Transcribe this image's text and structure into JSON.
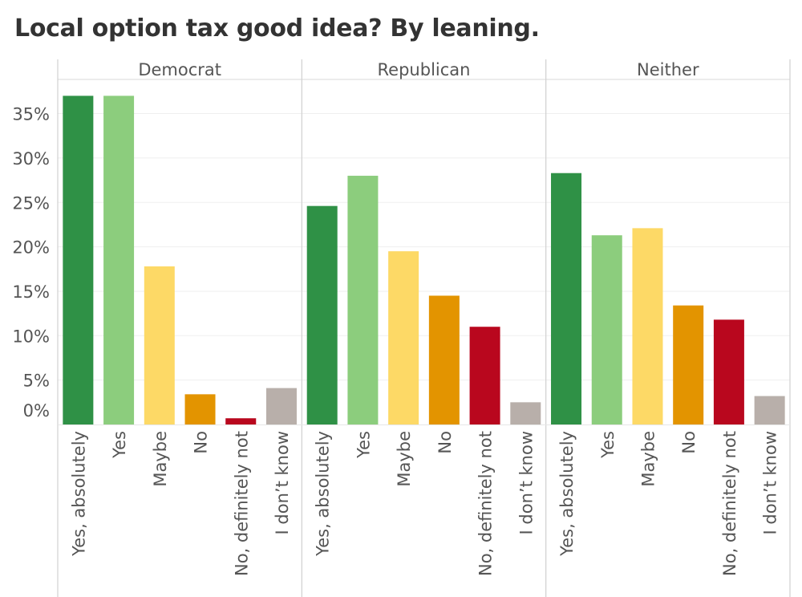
{
  "chart_data": {
    "type": "bar",
    "title": "Local option tax good idea? By leaning.",
    "panels": [
      "Democrat",
      "Republican",
      "Neither"
    ],
    "categories": [
      "Yes, absolutely",
      "Yes",
      "Maybe",
      "No",
      "No, definitely not",
      "I don’t know"
    ],
    "series": [
      {
        "panel": "Democrat",
        "values": [
          37.0,
          37.0,
          17.8,
          3.4,
          0.7,
          4.1
        ]
      },
      {
        "panel": "Republican",
        "values": [
          24.6,
          28.0,
          19.5,
          14.5,
          11.0,
          2.5
        ]
      },
      {
        "panel": "Neither",
        "values": [
          28.3,
          21.3,
          22.1,
          13.4,
          11.8,
          3.2
        ]
      }
    ],
    "y_ticks": [
      0,
      5,
      10,
      15,
      20,
      25,
      30,
      35
    ],
    "y_tick_labels": [
      "0%",
      "5%",
      "10%",
      "15%",
      "20%",
      "25%",
      "30%",
      "35%"
    ],
    "ylim": [
      0,
      37
    ],
    "category_colors": [
      "#2f9146",
      "#8ccd7d",
      "#fdd966",
      "#e39400",
      "#b9071e",
      "#b8afaa"
    ],
    "grid": true,
    "xlabel": "",
    "ylabel": ""
  }
}
